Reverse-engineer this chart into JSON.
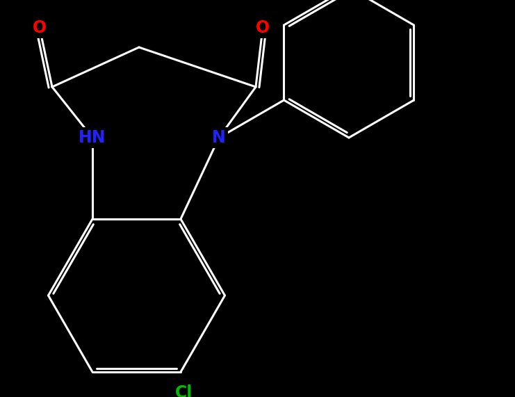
{
  "background_color": "#000000",
  "bond_color": "#ffffff",
  "bond_width": 2.2,
  "atom_colors": {
    "O": "#ff0000",
    "N": "#2222ff",
    "Cl": "#00bb00",
    "C": "#ffffff"
  },
  "fig_width": 7.41,
  "fig_height": 5.71,
  "dpi": 100
}
